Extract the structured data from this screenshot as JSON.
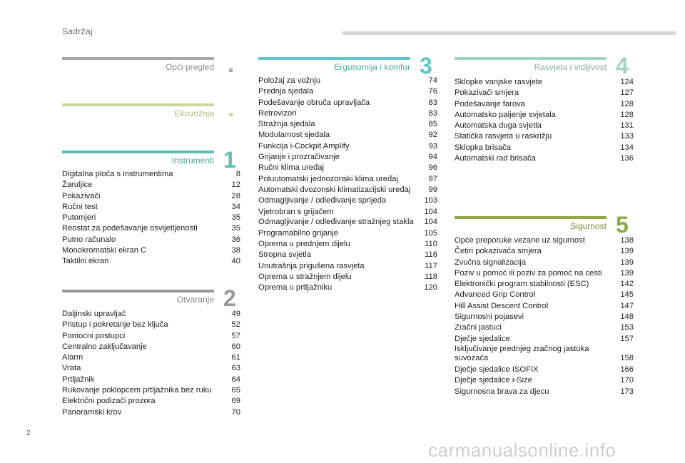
{
  "header": {
    "title": "Sadržaj"
  },
  "page_number": "2",
  "watermark": "carmanualsonline.info",
  "sections": {
    "opci": {
      "title": "Opći pregled",
      "color": "#a7a8ad"
    },
    "ekovoznja": {
      "title": "Ekovožnja",
      "color": "#c8d79a"
    },
    "instrumenti": {
      "title": "Instrumenti",
      "number": "1",
      "color": "#5fbfb3",
      "entries": [
        {
          "label": "Digitalna ploča s instrumentima",
          "page": "8"
        },
        {
          "label": "Žaruljice",
          "page": "12"
        },
        {
          "label": "Pokazivači",
          "page": "28"
        },
        {
          "label": "Ručni test",
          "page": "34"
        },
        {
          "label": "Putomjeri",
          "page": "35"
        },
        {
          "label": "Reostat za podešavanje osvijetljenosti",
          "page": "35"
        },
        {
          "label": "Putno računalo",
          "page": "36"
        },
        {
          "label": "Monokromatski ekran C",
          "page": "38"
        },
        {
          "label": "Taktilni ekran",
          "page": "40"
        }
      ]
    },
    "otvaranje": {
      "title": "Otvaranje",
      "number": "2",
      "color": "#9d9898",
      "entries": [
        {
          "label": "Daljinski upravljač",
          "page": "49"
        },
        {
          "label": "Pristup i pokretanje bez ključa",
          "page": "52"
        },
        {
          "label": "Pomoćni postupci",
          "page": "57"
        },
        {
          "label": "Centralno zaključavanje",
          "page": "60"
        },
        {
          "label": "Alarm",
          "page": "61"
        },
        {
          "label": "Vrata",
          "page": "63"
        },
        {
          "label": "Prtljažnik",
          "page": "64"
        },
        {
          "label": "Rukovanje poklopcem prtljažnika bez ruku",
          "page": "65"
        },
        {
          "label": "Električni podizači prozora",
          "page": "69"
        },
        {
          "label": "Panoramski krov",
          "page": "70"
        }
      ]
    },
    "ergonomija": {
      "title": "Ergonomija i komfor",
      "number": "3",
      "color": "#5fc6c9",
      "entries": [
        {
          "label": "Položaj za vožnju",
          "page": "74"
        },
        {
          "label": "Prednja sjedala",
          "page": "76"
        },
        {
          "label": "Podešavanje obruča upravljača",
          "page": "83"
        },
        {
          "label": "Retrovizori",
          "page": "83"
        },
        {
          "label": "Stražnja sjedala",
          "page": "85"
        },
        {
          "label": "Modularnost sjedala",
          "page": "92"
        },
        {
          "label": "Funkcija i-Cockpit Amplify",
          "page": "93"
        },
        {
          "label": "Grijanje i prozračivanje",
          "page": "94"
        },
        {
          "label": "Ručni klima uređaj",
          "page": "96"
        },
        {
          "label": "Poluutomatski jednozonski klima uređaj",
          "page": "97"
        },
        {
          "label": "Automatski dvozonski klimatizacijski uređaj",
          "page": "99"
        },
        {
          "label": "Odmagljivanje / odleđivanje sprijeda",
          "page": "103"
        },
        {
          "label": "Vjetrobran s grijačem",
          "page": "104"
        },
        {
          "label": "Odmagljivanje / odleđivanje stražnjeg stakla",
          "page": "104",
          "wrap": true
        },
        {
          "label": "Programabilno grijanje",
          "page": "105"
        },
        {
          "label": "Oprema u prednjem dijelu",
          "page": "110"
        },
        {
          "label": "Stropna svjetla",
          "page": "116"
        },
        {
          "label": "Unutrašnja prigušena rasvjeta",
          "page": "117"
        },
        {
          "label": "Oprema u stražnjem dijelu",
          "page": "118"
        },
        {
          "label": "Oprema u prtljažniku",
          "page": "120"
        }
      ]
    },
    "rasvjeta": {
      "title": "Rasvjeta i vidljivost",
      "number": "4",
      "color": "#9fd3c2",
      "entries": [
        {
          "label": "Sklopke vanjske rasvjete",
          "page": "124"
        },
        {
          "label": "Pokazivači smjera",
          "page": "127"
        },
        {
          "label": "Podešavanje farova",
          "page": "128"
        },
        {
          "label": "Automatsko paljenje svjetala",
          "page": "128"
        },
        {
          "label": "Automatska duga svjetla",
          "page": "131"
        },
        {
          "label": "Statička rasvjeta u raskrižju",
          "page": "133"
        },
        {
          "label": "Sklopka brisača",
          "page": "134"
        },
        {
          "label": "Automatski rad brisača",
          "page": "136"
        }
      ]
    },
    "sigurnost": {
      "title": "Sigurnost",
      "number": "5",
      "color": "#8ea845",
      "entries": [
        {
          "label": "Opće preporuke vezane uz sigurnost",
          "page": "138"
        },
        {
          "label": "Četiri pokazivača smjera",
          "page": "139"
        },
        {
          "label": "Zvučna signalizacija",
          "page": "139"
        },
        {
          "label": "Poziv u pomoć ili poziv za pomoć na cesti",
          "page": "139"
        },
        {
          "label": "Elektronički program stabilnosti (ESC)",
          "page": "142"
        },
        {
          "label": "Advanced Grip Control",
          "page": "145"
        },
        {
          "label": "Hill Assist Descent Control",
          "page": "147"
        },
        {
          "label": "Sigurnosni pojasevi",
          "page": "148"
        },
        {
          "label": "Zračni jastuci",
          "page": "153"
        },
        {
          "label": "Dječje sjedalice",
          "page": "157"
        },
        {
          "label": "Isključivanje prednjeg zračnog jastuka suvozača",
          "page": "158",
          "wrap": true
        },
        {
          "label": "Dječje sjedalice ISOFIX",
          "page": "166"
        },
        {
          "label": "Dječje sjedalice i-Size",
          "page": "170"
        },
        {
          "label": "Sigurnosna brava za djecu",
          "page": "173"
        }
      ]
    }
  }
}
